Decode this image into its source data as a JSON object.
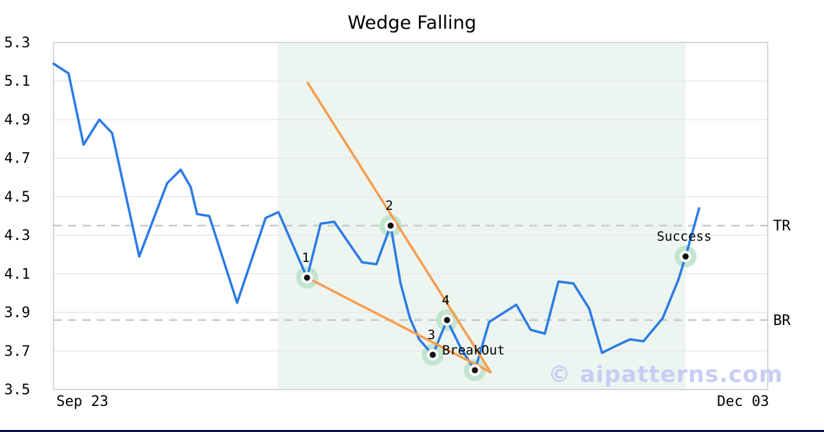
{
  "title": "Wedge Falling",
  "watermark": "© aipatterns.com",
  "colors": {
    "price_line": "#2b7ce5",
    "trendline": "#f89c4e",
    "pattern_zone": "#edf5f0",
    "gridline": "#e8e8e8",
    "spine": "#d8d8d8",
    "dashed_level": "#c9c9c9",
    "marker_halo": "#c2e5cf",
    "marker_ring": "#ffffff",
    "marker_dot": "#111111",
    "label_text": "#000000",
    "watermark_text": "#c9cdf4",
    "bottom_bar": "#0b1045"
  },
  "chart_data": {
    "type": "line",
    "title": "Wedge Falling",
    "ylim": [
      3.5,
      5.3
    ],
    "y_ticks": [
      5.3,
      5.1,
      4.9,
      4.7,
      4.5,
      4.3,
      4.1,
      3.9,
      3.7,
      3.5
    ],
    "x_ticks": [
      "Sep 23",
      "Dec 03"
    ],
    "grid": true,
    "legend": "none",
    "series": [
      {
        "name": "price",
        "points": [
          [
            0.0,
            5.19
          ],
          [
            0.021,
            5.14
          ],
          [
            0.042,
            4.77
          ],
          [
            0.064,
            4.9
          ],
          [
            0.082,
            4.83
          ],
          [
            0.12,
            4.19
          ],
          [
            0.159,
            4.57
          ],
          [
            0.178,
            4.64
          ],
          [
            0.192,
            4.55
          ],
          [
            0.201,
            4.41
          ],
          [
            0.218,
            4.4
          ],
          [
            0.257,
            3.95
          ],
          [
            0.297,
            4.39
          ],
          [
            0.315,
            4.42
          ],
          [
            0.355,
            4.08
          ],
          [
            0.374,
            4.36
          ],
          [
            0.393,
            4.37
          ],
          [
            0.432,
            4.16
          ],
          [
            0.452,
            4.15
          ],
          [
            0.472,
            4.35
          ],
          [
            0.486,
            4.05
          ],
          [
            0.499,
            3.87
          ],
          [
            0.512,
            3.76
          ],
          [
            0.531,
            3.68
          ],
          [
            0.551,
            3.86
          ],
          [
            0.571,
            3.71
          ],
          [
            0.59,
            3.6
          ],
          [
            0.61,
            3.85
          ],
          [
            0.648,
            3.94
          ],
          [
            0.668,
            3.81
          ],
          [
            0.688,
            3.79
          ],
          [
            0.707,
            4.06
          ],
          [
            0.728,
            4.05
          ],
          [
            0.75,
            3.92
          ],
          [
            0.768,
            3.69
          ],
          [
            0.784,
            3.72
          ],
          [
            0.807,
            3.76
          ],
          [
            0.826,
            3.75
          ],
          [
            0.853,
            3.87
          ],
          [
            0.875,
            4.07
          ],
          [
            0.885,
            4.19
          ],
          [
            0.904,
            4.44
          ]
        ]
      }
    ],
    "trendlines": [
      {
        "name": "upper-wedge-line",
        "from": [
          0.356,
          5.09
        ],
        "to": [
          0.612,
          3.59
        ]
      },
      {
        "name": "lower-wedge-line",
        "from": [
          0.355,
          4.08
        ],
        "to": [
          0.612,
          3.59
        ]
      }
    ],
    "levels": [
      {
        "label": "TR",
        "value": 4.35
      },
      {
        "label": "BR",
        "value": 3.86
      }
    ],
    "pattern_zone": {
      "from": 0.314,
      "to": 0.885
    },
    "markers": [
      {
        "x": 0.355,
        "value": 4.08,
        "label": "1"
      },
      {
        "x": 0.472,
        "value": 4.35,
        "label": "2"
      },
      {
        "x": 0.531,
        "value": 3.68,
        "label": "3"
      },
      {
        "x": 0.551,
        "value": 3.86,
        "label": "4"
      },
      {
        "x": 0.59,
        "value": 3.6,
        "label": "BreakOut"
      },
      {
        "x": 0.885,
        "value": 4.19,
        "label": "Success"
      }
    ]
  }
}
